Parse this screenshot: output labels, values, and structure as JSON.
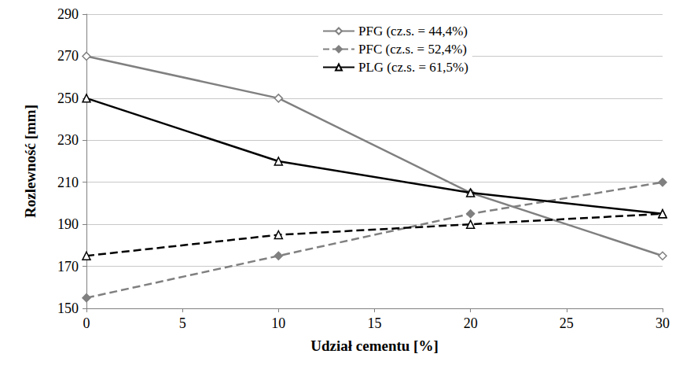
{
  "chart_data": {
    "type": "line",
    "x_label": "Udział cementu [%]",
    "y_label": "Rozlewność [mm]",
    "x": [
      0,
      10,
      20,
      30
    ],
    "series": [
      {
        "name": "PFG (cz.s. = 44,4%)",
        "color": "#808080",
        "marker": "diamond-open",
        "line_style": "solid",
        "values": [
          270,
          250,
          205,
          175
        ]
      },
      {
        "name": "PFC (cz.s. = 52,4%)",
        "color": "#808080",
        "marker": "diamond",
        "line_style": "dashed",
        "values": [
          155,
          175,
          195,
          210
        ]
      },
      {
        "name": "PLG (cz.s. = 61,5%)",
        "color": "#000000",
        "marker": "triangle-open",
        "line_style": "solid",
        "values": [
          250,
          220,
          205,
          195
        ]
      },
      {
        "color": "#000000",
        "marker": "triangle-open",
        "line_style": "dashed",
        "values": [
          175,
          185,
          190,
          195
        ]
      }
    ],
    "xlim": [
      0,
      30
    ],
    "xticks": [
      0,
      5,
      10,
      15,
      20,
      25,
      30
    ],
    "ylim": [
      150,
      290
    ],
    "yticks": [
      150,
      170,
      190,
      210,
      230,
      250,
      270,
      290
    ],
    "grid": true,
    "legend": "top"
  }
}
